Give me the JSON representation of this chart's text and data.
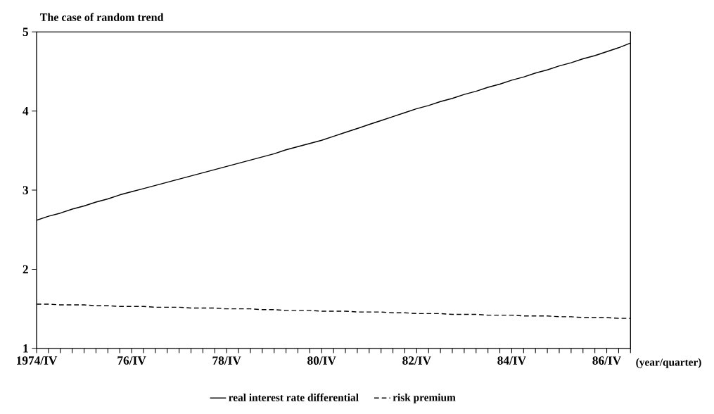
{
  "chart_data": {
    "type": "line",
    "title": "The case of random trend",
    "xlabel": "(year/quarter)",
    "categories": [
      "1974/IV",
      null,
      null,
      null,
      null,
      null,
      null,
      null,
      "76/IV",
      null,
      null,
      null,
      null,
      null,
      null,
      null,
      "78/IV",
      null,
      null,
      null,
      null,
      null,
      null,
      null,
      "80/IV",
      null,
      null,
      null,
      null,
      null,
      null,
      null,
      "82/IV",
      null,
      null,
      null,
      null,
      null,
      null,
      null,
      "84/IV",
      null,
      null,
      null,
      null,
      null,
      null,
      null,
      "86/IV",
      null,
      null
    ],
    "series": [
      {
        "name": "real interest rate differential",
        "color": "#000000",
        "line_style": "solid",
        "values": [
          2.62,
          2.67,
          2.71,
          2.76,
          2.8,
          2.85,
          2.89,
          2.94,
          2.98,
          3.02,
          3.06,
          3.1,
          3.14,
          3.18,
          3.22,
          3.26,
          3.3,
          3.34,
          3.38,
          3.42,
          3.46,
          3.51,
          3.55,
          3.59,
          3.63,
          3.68,
          3.73,
          3.78,
          3.83,
          3.88,
          3.93,
          3.98,
          4.03,
          4.07,
          4.12,
          4.16,
          4.21,
          4.25,
          4.3,
          4.34,
          4.39,
          4.43,
          4.48,
          4.52,
          4.57,
          4.61,
          4.66,
          4.7,
          4.75,
          4.8,
          4.86
        ]
      },
      {
        "name": "risk premium",
        "color": "#000000",
        "line_style": "dashed",
        "values": [
          1.56,
          1.56,
          1.55,
          1.55,
          1.55,
          1.54,
          1.54,
          1.53,
          1.53,
          1.53,
          1.52,
          1.52,
          1.52,
          1.51,
          1.51,
          1.51,
          1.5,
          1.5,
          1.5,
          1.49,
          1.49,
          1.48,
          1.48,
          1.48,
          1.47,
          1.47,
          1.47,
          1.46,
          1.46,
          1.46,
          1.45,
          1.45,
          1.44,
          1.44,
          1.44,
          1.43,
          1.43,
          1.43,
          1.42,
          1.42,
          1.42,
          1.41,
          1.41,
          1.41,
          1.4,
          1.4,
          1.39,
          1.39,
          1.39,
          1.38,
          1.38
        ]
      }
    ],
    "ylim": [
      1,
      5
    ],
    "yticks": [
      1,
      2,
      3,
      4,
      5
    ],
    "grid": false,
    "legend": "bottom",
    "marker": "none"
  }
}
